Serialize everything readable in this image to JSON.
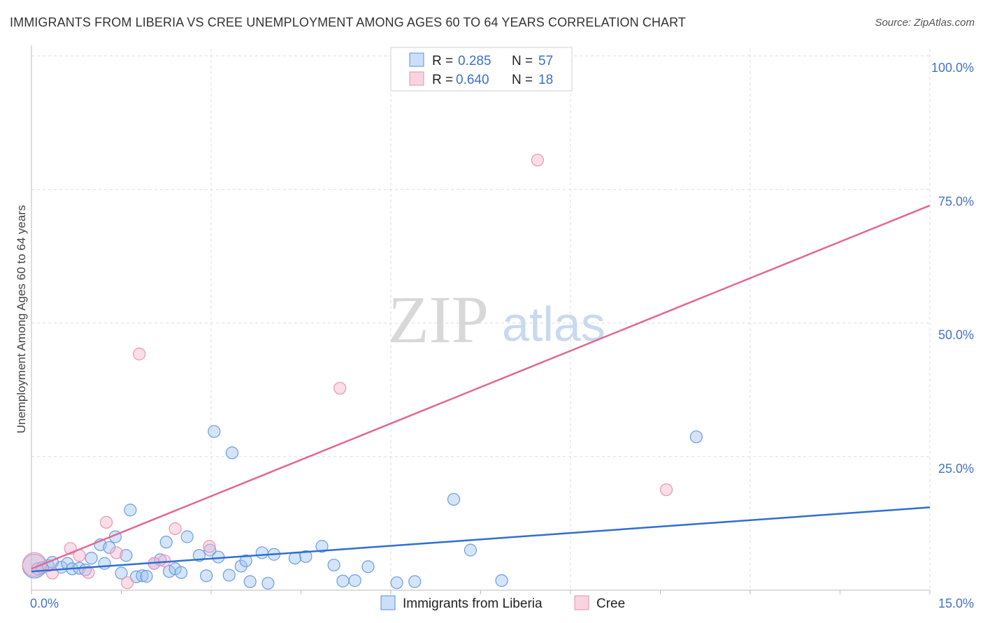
{
  "title": "IMMIGRANTS FROM LIBERIA VS CREE UNEMPLOYMENT AMONG AGES 60 TO 64 YEARS CORRELATION CHART",
  "source": "Source: ZipAtlas.com",
  "watermark": {
    "zip": "ZIP",
    "atlas": "atlas"
  },
  "colors": {
    "blue": "#4a86d8",
    "blue_fill": "rgba(160,196,242,0.45)",
    "pink": "#e07098",
    "pink_fill": "rgba(246,182,204,0.45)",
    "grid": "#dddddd",
    "axis_label": "#4472c4"
  },
  "chart_data": {
    "type": "scatter",
    "xlabel": "",
    "ylabel": "Unemployment Among Ages 60 to 64 years",
    "xlim": [
      0,
      15
    ],
    "ylim": [
      0,
      100
    ],
    "x_tick_labels": [
      {
        "v": 0,
        "t": "0.0%"
      },
      {
        "v": 15,
        "t": "15.0%"
      }
    ],
    "y_tick_labels": [
      {
        "v": 25,
        "t": "25.0%"
      },
      {
        "v": 50,
        "t": "50.0%"
      },
      {
        "v": 75,
        "t": "75.0%"
      },
      {
        "v": 100,
        "t": "100.0%"
      }
    ],
    "legend": {
      "entries": [
        {
          "r_label": "R =",
          "r": "0.285",
          "n_label": "N =",
          "n": "57"
        },
        {
          "r_label": "R =",
          "r": "0.640",
          "n_label": "N =",
          "n": "18"
        }
      ]
    },
    "series": [
      {
        "name": "Immigrants from Liberia",
        "color": "#4a86d8",
        "trend": {
          "x": [
            0,
            15
          ],
          "y": [
            3.5,
            15.5
          ]
        },
        "points": [
          {
            "x": 0.05,
            "y": 4.5,
            "big": true
          },
          {
            "x": 0.1,
            "y": 4.0
          },
          {
            "x": 0.18,
            "y": 4.2
          },
          {
            "x": 0.28,
            "y": 4.6
          },
          {
            "x": 0.35,
            "y": 5.2
          },
          {
            "x": 0.5,
            "y": 4.3
          },
          {
            "x": 0.6,
            "y": 5.0
          },
          {
            "x": 0.68,
            "y": 4.0
          },
          {
            "x": 0.8,
            "y": 4.1
          },
          {
            "x": 0.9,
            "y": 3.8
          },
          {
            "x": 1.0,
            "y": 6.0
          },
          {
            "x": 1.15,
            "y": 8.5
          },
          {
            "x": 1.22,
            "y": 5.0
          },
          {
            "x": 1.3,
            "y": 8.0
          },
          {
            "x": 1.4,
            "y": 10.0
          },
          {
            "x": 1.5,
            "y": 3.2
          },
          {
            "x": 1.58,
            "y": 6.5
          },
          {
            "x": 1.65,
            "y": 15.0
          },
          {
            "x": 1.75,
            "y": 2.5
          },
          {
            "x": 1.85,
            "y": 2.7
          },
          {
            "x": 1.92,
            "y": 2.6
          },
          {
            "x": 2.05,
            "y": 5.0
          },
          {
            "x": 2.15,
            "y": 5.7
          },
          {
            "x": 2.25,
            "y": 9.0
          },
          {
            "x": 2.3,
            "y": 3.5
          },
          {
            "x": 2.4,
            "y": 4.0
          },
          {
            "x": 2.5,
            "y": 3.3
          },
          {
            "x": 2.6,
            "y": 10.0
          },
          {
            "x": 2.8,
            "y": 6.5
          },
          {
            "x": 2.92,
            "y": 2.7
          },
          {
            "x": 2.98,
            "y": 7.5
          },
          {
            "x": 3.05,
            "y": 29.7
          },
          {
            "x": 3.12,
            "y": 6.2
          },
          {
            "x": 3.3,
            "y": 2.8
          },
          {
            "x": 3.35,
            "y": 25.7
          },
          {
            "x": 3.5,
            "y": 4.5
          },
          {
            "x": 3.58,
            "y": 5.5
          },
          {
            "x": 3.65,
            "y": 1.6
          },
          {
            "x": 3.85,
            "y": 7.0
          },
          {
            "x": 3.95,
            "y": 1.3
          },
          {
            "x": 4.05,
            "y": 6.7
          },
          {
            "x": 4.4,
            "y": 6.0
          },
          {
            "x": 4.58,
            "y": 6.3
          },
          {
            "x": 4.85,
            "y": 8.2
          },
          {
            "x": 5.05,
            "y": 4.7
          },
          {
            "x": 5.2,
            "y": 1.7
          },
          {
            "x": 5.4,
            "y": 1.8
          },
          {
            "x": 5.62,
            "y": 4.4
          },
          {
            "x": 6.1,
            "y": 1.4
          },
          {
            "x": 6.4,
            "y": 1.6
          },
          {
            "x": 7.05,
            "y": 17.0
          },
          {
            "x": 7.33,
            "y": 7.5
          },
          {
            "x": 7.85,
            "y": 1.8
          },
          {
            "x": 11.1,
            "y": 28.7
          }
        ]
      },
      {
        "name": "Cree",
        "color": "#e07098",
        "trend": {
          "x": [
            0,
            15
          ],
          "y": [
            4.0,
            72.0
          ]
        },
        "points": [
          {
            "x": 0.05,
            "y": 4.8,
            "big": true
          },
          {
            "x": 0.35,
            "y": 3.2
          },
          {
            "x": 0.65,
            "y": 7.8
          },
          {
            "x": 0.8,
            "y": 6.5
          },
          {
            "x": 0.95,
            "y": 3.3
          },
          {
            "x": 1.25,
            "y": 12.7
          },
          {
            "x": 1.42,
            "y": 7.0
          },
          {
            "x": 1.6,
            "y": 1.4
          },
          {
            "x": 1.8,
            "y": 44.2
          },
          {
            "x": 2.05,
            "y": 5.0
          },
          {
            "x": 2.22,
            "y": 5.5
          },
          {
            "x": 2.4,
            "y": 11.5
          },
          {
            "x": 2.97,
            "y": 8.2
          },
          {
            "x": 5.15,
            "y": 37.8
          },
          {
            "x": 8.45,
            "y": 80.5
          },
          {
            "x": 10.6,
            "y": 18.8
          }
        ]
      }
    ]
  }
}
